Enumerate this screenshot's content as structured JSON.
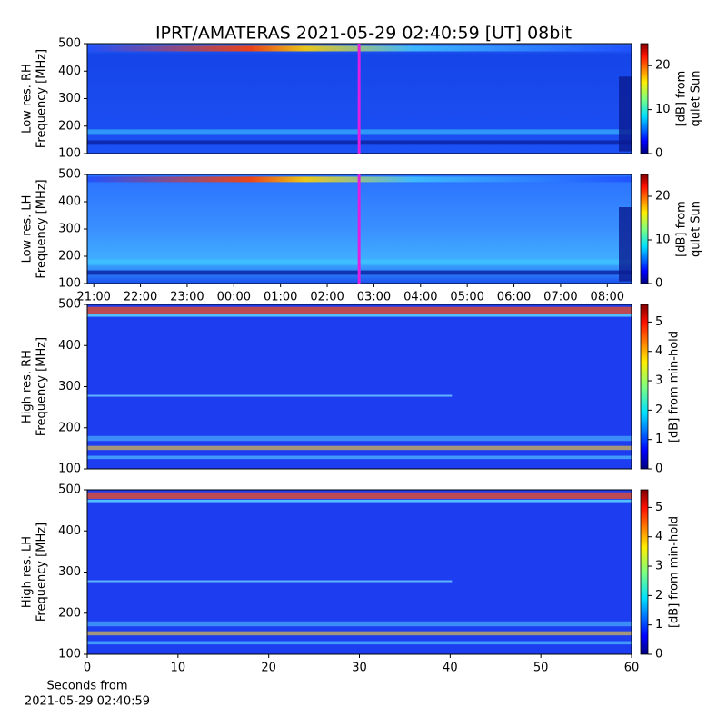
{
  "title": "IPRT/AMATERAS 2021-05-29 02:40:59 [UT]   08bit",
  "chart_data": [
    {
      "type": "heatmap",
      "ylabel": [
        "Low res. RH",
        "Frequency [MHz]"
      ],
      "xlim": [
        20.86,
        32.52
      ],
      "ylim": [
        100,
        500
      ],
      "yticks": [
        100,
        200,
        300,
        400,
        500
      ],
      "marker_x": 26.683,
      "marker_color": "#e020e0",
      "colorbar": {
        "label": [
          "[dB] from",
          "quiet Sun"
        ],
        "lim": [
          0,
          25
        ],
        "ticks": [
          0,
          10,
          20
        ],
        "colormap": "jet"
      }
    },
    {
      "type": "heatmap",
      "ylabel": [
        "Low res. LH",
        "Frequency [MHz]"
      ],
      "xlim": [
        20.86,
        32.52
      ],
      "ylim": [
        100,
        500
      ],
      "yticks": [
        100,
        200,
        300,
        400,
        500
      ],
      "xticks": [
        {
          "value": 21,
          "label": "21:00"
        },
        {
          "value": 22,
          "label": "22:00"
        },
        {
          "value": 23,
          "label": "23:00"
        },
        {
          "value": 24,
          "label": "00:00"
        },
        {
          "value": 25,
          "label": "01:00"
        },
        {
          "value": 26,
          "label": "02:00"
        },
        {
          "value": 27,
          "label": "03:00"
        },
        {
          "value": 28,
          "label": "04:00"
        },
        {
          "value": 29,
          "label": "05:00"
        },
        {
          "value": 30,
          "label": "06:00"
        },
        {
          "value": 31,
          "label": "07:00"
        },
        {
          "value": 32,
          "label": "08:00"
        }
      ],
      "marker_x": 26.683,
      "marker_color": "#e020e0",
      "colorbar": {
        "label": [
          "[dB] from",
          "quiet Sun"
        ],
        "lim": [
          0,
          25
        ],
        "ticks": [
          0,
          10,
          20
        ],
        "colormap": "jet"
      }
    },
    {
      "type": "heatmap",
      "ylabel": [
        "High res. RH",
        "Frequency [MHz]"
      ],
      "xlim": [
        0,
        60
      ],
      "ylim": [
        100,
        500
      ],
      "yticks": [
        100,
        200,
        300,
        400,
        500
      ],
      "colorbar": {
        "label": [
          "[dB] from min-hold"
        ],
        "lim": [
          0,
          5.6
        ],
        "ticks": [
          0,
          1,
          2,
          3,
          4,
          5
        ],
        "colormap": "jet"
      }
    },
    {
      "type": "heatmap",
      "ylabel": [
        "High res. LH",
        "Frequency [MHz]"
      ],
      "xlabel": [
        "Seconds from",
        "2021-05-29 02:40:59"
      ],
      "xlim": [
        0,
        60
      ],
      "ylim": [
        100,
        500
      ],
      "yticks": [
        100,
        200,
        300,
        400,
        500
      ],
      "xticks": [
        0,
        10,
        20,
        30,
        40,
        50,
        60
      ],
      "colorbar": {
        "label": [
          "[dB] from min-hold"
        ],
        "lim": [
          0,
          5.6
        ],
        "ticks": [
          0,
          1,
          2,
          3,
          4,
          5
        ],
        "colormap": "jet"
      }
    }
  ]
}
